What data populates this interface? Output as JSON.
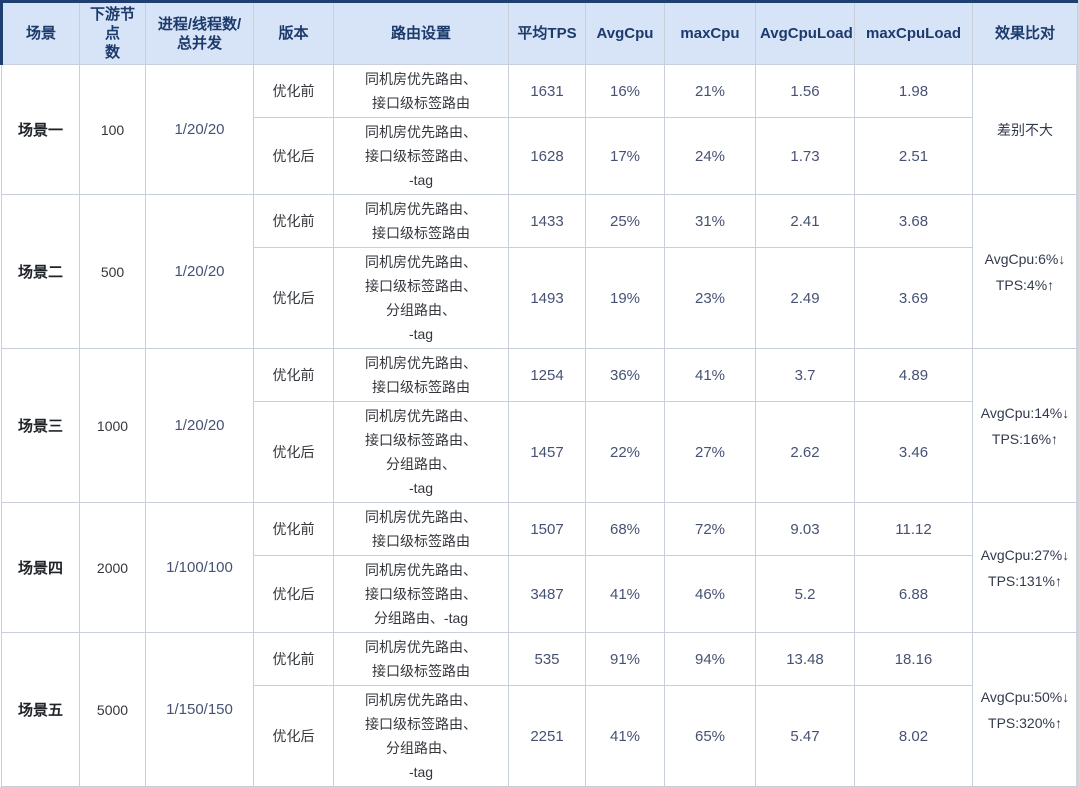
{
  "colors": {
    "header_bg": "#d7e4f7",
    "header_text": "#1c3a6b",
    "outer_border": "#1e3f70",
    "grid_line": "#c9cfda",
    "page_bg": "#d5d7dc",
    "number_text": "#475273",
    "body_text": "#33363b"
  },
  "table": {
    "headers": {
      "scenario": "场景",
      "nodes": "下游节点\n数",
      "concurrency": "进程/线程数/\n总并发",
      "version": "版本",
      "routing": "路由设置",
      "tps": "平均TPS",
      "avgcpu": "AvgCpu",
      "maxcpu": "maxCpu",
      "avgcpuload": "AvgCpuLoad",
      "maxcpuload": "maxCpuLoad",
      "effect": "效果比对"
    },
    "groups": [
      {
        "scenario": "场景一",
        "nodes": "100",
        "concurrency": "1/20/20",
        "effect": "差别不大",
        "pre": {
          "version": "优化前",
          "routing": "同机房优先路由、\n接口级标签路由",
          "tps": "1631",
          "avgcpu": "16%",
          "maxcpu": "21%",
          "avgcpuload": "1.56",
          "maxcpuload": "1.98"
        },
        "post": {
          "version": "优化后",
          "routing": "同机房优先路由、\n接口级标签路由、\n-tag",
          "tps": "1628",
          "avgcpu": "17%",
          "maxcpu": "24%",
          "avgcpuload": "1.73",
          "maxcpuload": "2.51"
        }
      },
      {
        "scenario": "场景二",
        "nodes": "500",
        "concurrency": "1/20/20",
        "effect": "AvgCpu:6%↓\nTPS:4%↑",
        "pre": {
          "version": "优化前",
          "routing": "同机房优先路由、\n接口级标签路由",
          "tps": "1433",
          "avgcpu": "25%",
          "maxcpu": "31%",
          "avgcpuload": "2.41",
          "maxcpuload": "3.68"
        },
        "post": {
          "version": "优化后",
          "routing": "同机房优先路由、\n接口级标签路由、\n分组路由、\n-tag",
          "tps": "1493",
          "avgcpu": "19%",
          "maxcpu": "23%",
          "avgcpuload": "2.49",
          "maxcpuload": "3.69"
        }
      },
      {
        "scenario": "场景三",
        "nodes": "1000",
        "concurrency": "1/20/20",
        "effect": "AvgCpu:14%↓\nTPS:16%↑",
        "pre": {
          "version": "优化前",
          "routing": "同机房优先路由、\n接口级标签路由",
          "tps": "1254",
          "avgcpu": "36%",
          "maxcpu": "41%",
          "avgcpuload": "3.7",
          "maxcpuload": "4.89"
        },
        "post": {
          "version": "优化后",
          "routing": "同机房优先路由、\n接口级标签路由、\n分组路由、\n-tag",
          "tps": "1457",
          "avgcpu": "22%",
          "maxcpu": "27%",
          "avgcpuload": "2.62",
          "maxcpuload": "3.46"
        }
      },
      {
        "scenario": "场景四",
        "nodes": "2000",
        "concurrency": "1/100/100",
        "effect": "AvgCpu:27%↓\nTPS:131%↑",
        "pre": {
          "version": "优化前",
          "routing": "同机房优先路由、\n接口级标签路由",
          "tps": "1507",
          "avgcpu": "68%",
          "maxcpu": "72%",
          "avgcpuload": "9.03",
          "maxcpuload": "11.12"
        },
        "post": {
          "version": "优化后",
          "routing": "同机房优先路由、\n接口级标签路由、\n分组路由、-tag",
          "tps": "3487",
          "avgcpu": "41%",
          "maxcpu": "46%",
          "avgcpuload": "5.2",
          "maxcpuload": "6.88"
        }
      },
      {
        "scenario": "场景五",
        "nodes": "5000",
        "concurrency": "1/150/150",
        "effect": "AvgCpu:50%↓\nTPS:320%↑",
        "pre": {
          "version": "优化前",
          "routing": "同机房优先路由、\n接口级标签路由",
          "tps": "535",
          "avgcpu": "91%",
          "maxcpu": "94%",
          "avgcpuload": "13.48",
          "maxcpuload": "18.16"
        },
        "post": {
          "version": "优化后",
          "routing": "同机房优先路由、\n接口级标签路由、\n分组路由、\n-tag",
          "tps": "2251",
          "avgcpu": "41%",
          "maxcpu": "65%",
          "avgcpuload": "5.47",
          "maxcpuload": "8.02"
        }
      }
    ]
  }
}
